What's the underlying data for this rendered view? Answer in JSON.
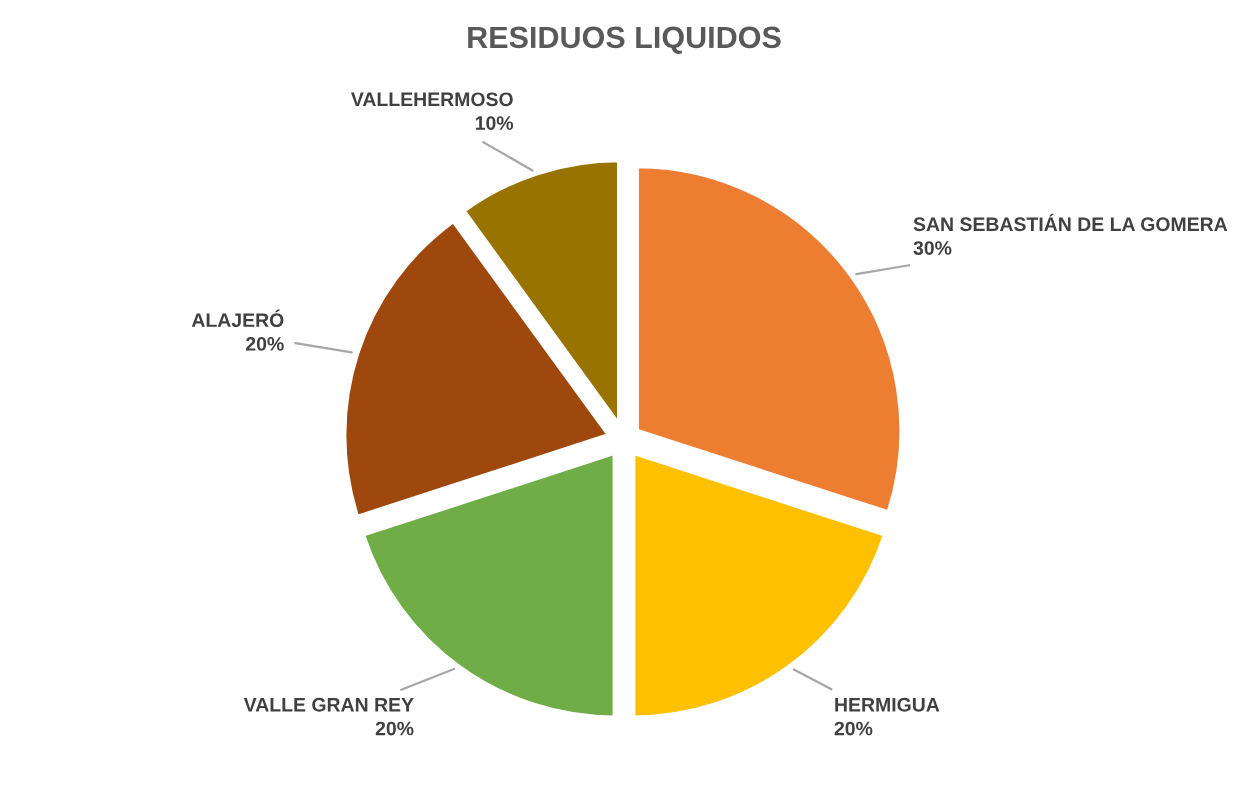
{
  "chart_data": {
    "type": "pie",
    "title": "RESIDUOS LIQUIDOS",
    "categories": [
      "SAN SEBASTIÁN DE LA GOMERA",
      "HERMIGUA",
      "VALLE GRAN REY",
      "ALAJERÓ",
      "VALLEHERMOSO"
    ],
    "values": [
      30,
      20,
      20,
      20,
      10
    ],
    "colors": [
      "#ed7d31",
      "#ffc000",
      "#70ad47",
      "#9e480e",
      "#997300"
    ],
    "value_labels": [
      "30%",
      "20%",
      "20%",
      "20%",
      "10%"
    ],
    "legend": false
  }
}
